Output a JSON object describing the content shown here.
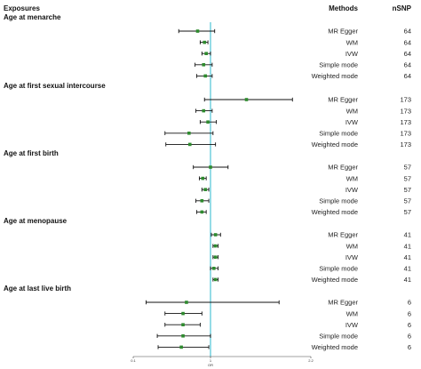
{
  "headers": {
    "exposures": "Exposures",
    "methods": "Methods",
    "nsnp": "nSNP"
  },
  "chart_data": {
    "type": "forest",
    "xlabel": "OR",
    "xlim": [
      0.1,
      2.2
    ],
    "ticks": [
      "0.1",
      "1",
      "2.2"
    ],
    "reference_line": 1,
    "colors": {
      "reference_line": "#5bc8d8",
      "point": "#2e8b2e",
      "whisker": "#111111"
    },
    "groups": [
      {
        "name": "Age at menarche",
        "rows": [
          {
            "method": "MR Egger",
            "nsnp": "64",
            "or": 0.85,
            "lo": 0.63,
            "hi": 1.05
          },
          {
            "method": "WM",
            "nsnp": "64",
            "or": 0.93,
            "lo": 0.88,
            "hi": 0.97
          },
          {
            "method": "IVW",
            "nsnp": "64",
            "or": 0.95,
            "lo": 0.9,
            "hi": 1.0
          },
          {
            "method": "Simple mode",
            "nsnp": "64",
            "or": 0.92,
            "lo": 0.82,
            "hi": 1.02
          },
          {
            "method": "Weighted mode",
            "nsnp": "64",
            "or": 0.94,
            "lo": 0.84,
            "hi": 1.02
          }
        ]
      },
      {
        "name": "Age at first sexual intercourse",
        "rows": [
          {
            "method": "MR Egger",
            "nsnp": "173",
            "or": 1.43,
            "lo": 0.93,
            "hi": 1.98
          },
          {
            "method": "WM",
            "nsnp": "173",
            "or": 0.92,
            "lo": 0.83,
            "hi": 1.02
          },
          {
            "method": "IVW",
            "nsnp": "173",
            "or": 0.97,
            "lo": 0.88,
            "hi": 1.07
          },
          {
            "method": "Simple mode",
            "nsnp": "173",
            "or": 0.75,
            "lo": 0.47,
            "hi": 1.03
          },
          {
            "method": "Weighted mode",
            "nsnp": "173",
            "or": 0.76,
            "lo": 0.48,
            "hi": 1.06
          }
        ]
      },
      {
        "name": "Age at first birth",
        "rows": [
          {
            "method": "MR Egger",
            "nsnp": "57",
            "or": 1.0,
            "lo": 0.8,
            "hi": 1.21
          },
          {
            "method": "WM",
            "nsnp": "57",
            "or": 0.91,
            "lo": 0.87,
            "hi": 0.95
          },
          {
            "method": "IVW",
            "nsnp": "57",
            "or": 0.94,
            "lo": 0.9,
            "hi": 0.98
          },
          {
            "method": "Simple mode",
            "nsnp": "57",
            "or": 0.9,
            "lo": 0.83,
            "hi": 0.98
          },
          {
            "method": "Weighted mode",
            "nsnp": "57",
            "or": 0.9,
            "lo": 0.84,
            "hi": 0.95
          }
        ]
      },
      {
        "name": "Age at menopause",
        "rows": [
          {
            "method": "MR Egger",
            "nsnp": "41",
            "or": 1.06,
            "lo": 1.01,
            "hi": 1.12
          },
          {
            "method": "WM",
            "nsnp": "41",
            "or": 1.06,
            "lo": 1.03,
            "hi": 1.09
          },
          {
            "method": "IVW",
            "nsnp": "41",
            "or": 1.06,
            "lo": 1.03,
            "hi": 1.09
          },
          {
            "method": "Simple mode",
            "nsnp": "41",
            "or": 1.04,
            "lo": 1.0,
            "hi": 1.09
          },
          {
            "method": "Weighted mode",
            "nsnp": "41",
            "or": 1.06,
            "lo": 1.03,
            "hi": 1.09
          }
        ]
      },
      {
        "name": "Age at last live birth",
        "rows": [
          {
            "method": "MR Egger",
            "nsnp": "6",
            "or": 0.72,
            "lo": 0.25,
            "hi": 1.82
          },
          {
            "method": "WM",
            "nsnp": "6",
            "or": 0.68,
            "lo": 0.47,
            "hi": 0.9
          },
          {
            "method": "IVW",
            "nsnp": "6",
            "or": 0.68,
            "lo": 0.47,
            "hi": 0.88
          },
          {
            "method": "Simple mode",
            "nsnp": "6",
            "or": 0.68,
            "lo": 0.38,
            "hi": 1.0
          },
          {
            "method": "Weighted mode",
            "nsnp": "6",
            "or": 0.66,
            "lo": 0.39,
            "hi": 0.98
          }
        ]
      }
    ]
  }
}
